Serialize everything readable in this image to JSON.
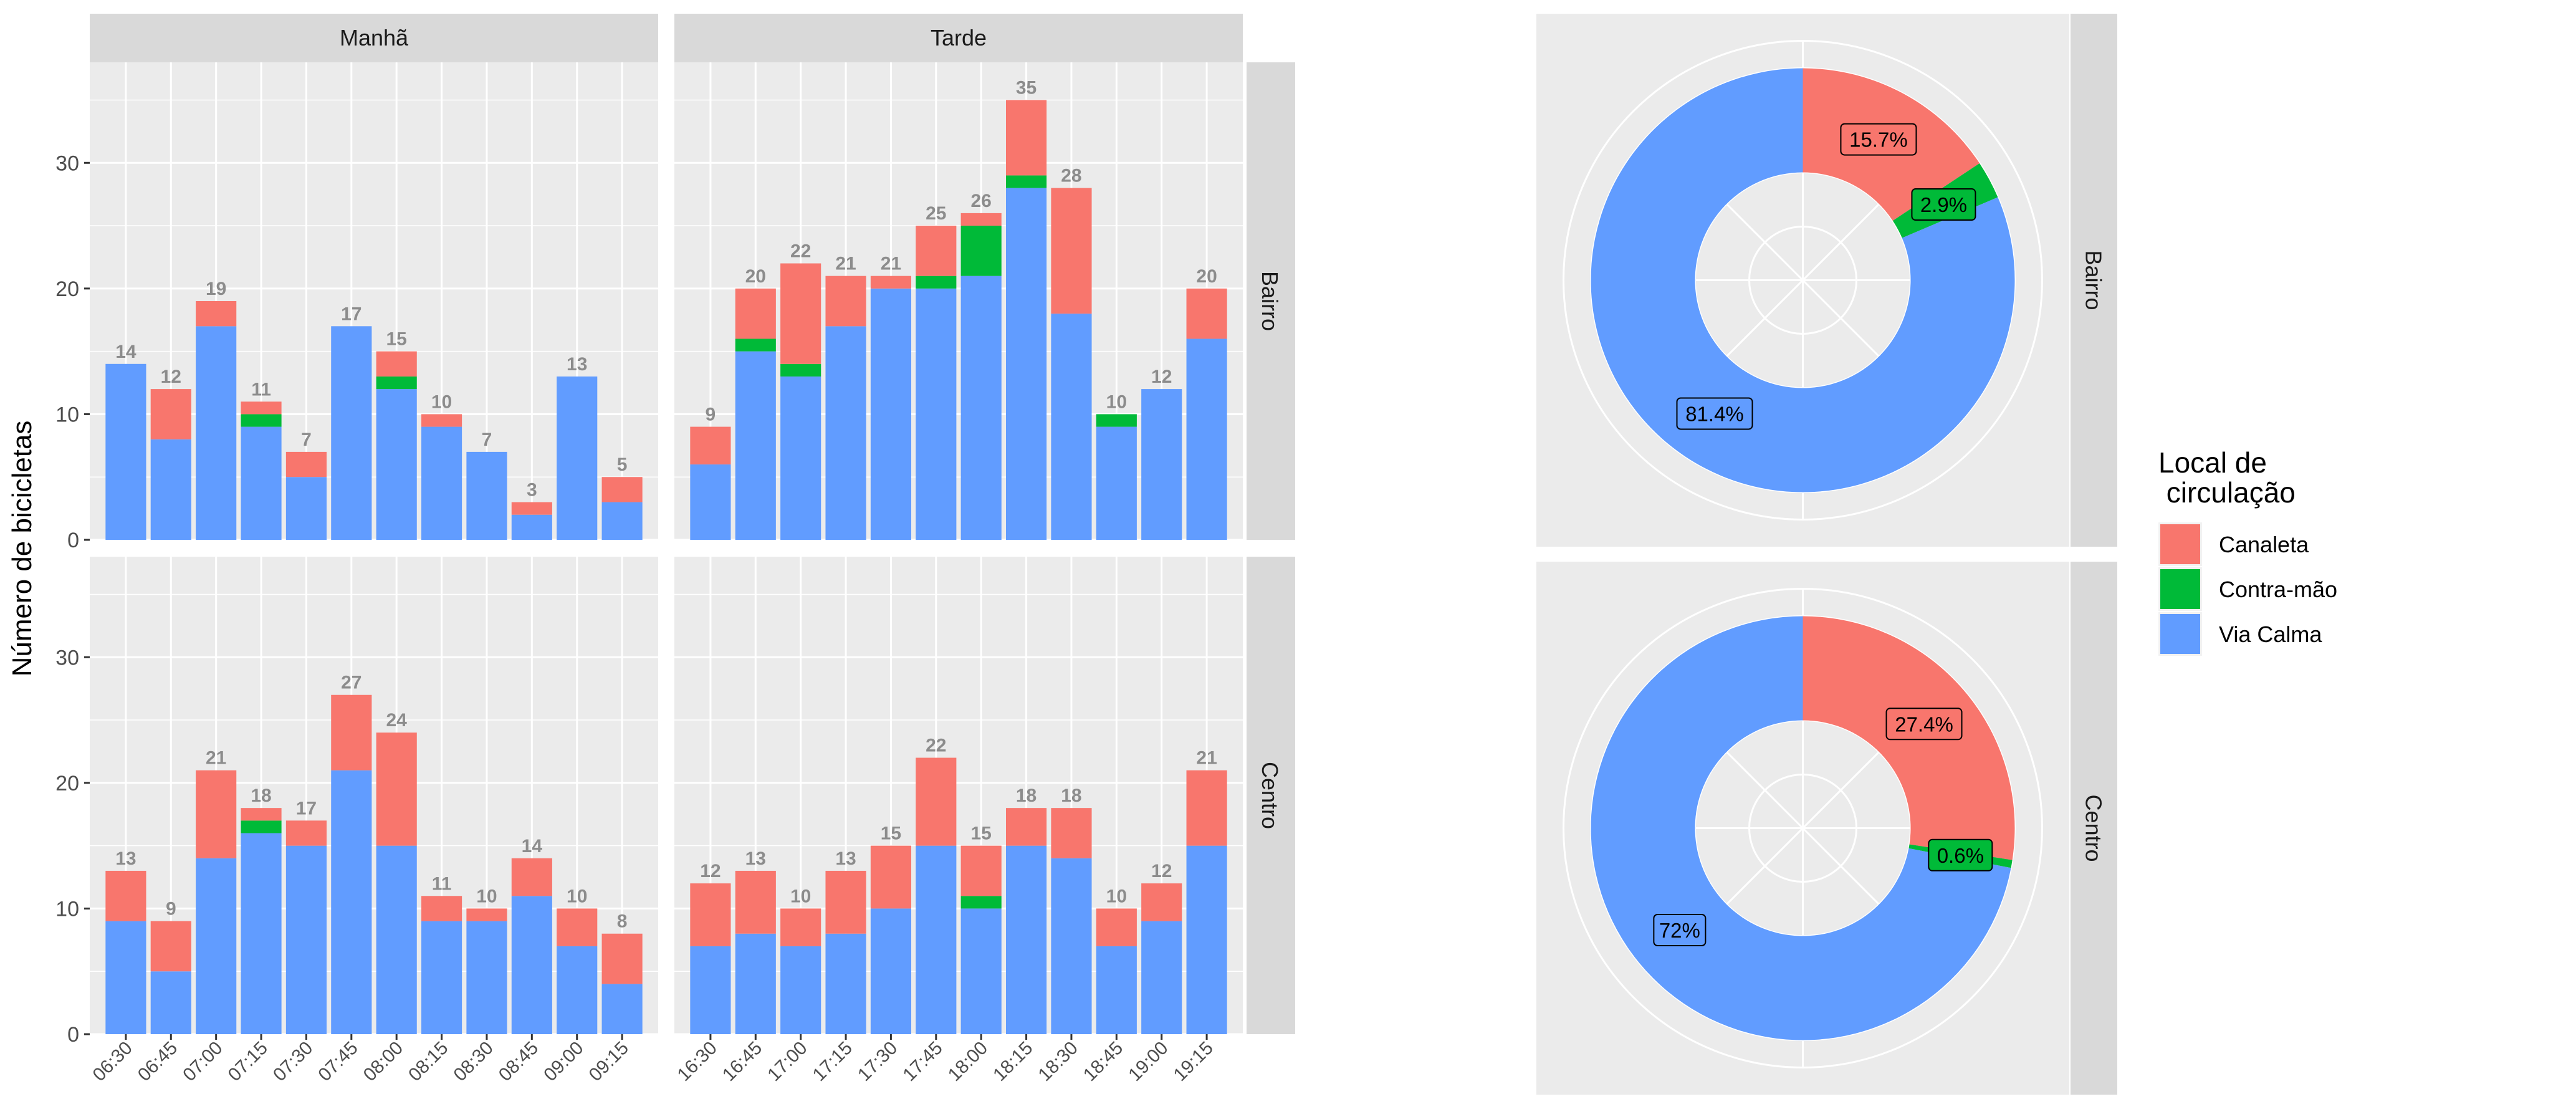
{
  "chart_data": [
    {
      "type": "bar",
      "stacked": true,
      "ylabel": "Número de bicicletas",
      "xlabel": "",
      "ylim": [
        0,
        38
      ],
      "yticks": [
        0,
        10,
        20,
        30
      ],
      "grid": true,
      "col_facets": [
        "Manhã",
        "Tarde"
      ],
      "row_facets": [
        "Bairro",
        "Centro"
      ],
      "categories_by_col": {
        "Manhã": [
          "06:30",
          "06:45",
          "07:00",
          "07:15",
          "07:30",
          "07:45",
          "08:00",
          "08:15",
          "08:30",
          "08:45",
          "09:00",
          "09:15"
        ],
        "Tarde": [
          "16:30",
          "16:45",
          "17:00",
          "17:15",
          "17:30",
          "17:45",
          "18:00",
          "18:15",
          "18:30",
          "18:45",
          "19:00",
          "19:15"
        ]
      },
      "series_order": [
        "Via Calma",
        "Contra-mão",
        "Canaleta"
      ],
      "panels": [
        {
          "row": "Bairro",
          "col": "Manhã",
          "series": [
            {
              "name": "Via Calma",
              "values": [
                14,
                8,
                17,
                9,
                5,
                17,
                12,
                9,
                7,
                2,
                13,
                3
              ]
            },
            {
              "name": "Contra-mão",
              "values": [
                0,
                0,
                0,
                1,
                0,
                0,
                1,
                0,
                0,
                0,
                0,
                0
              ]
            },
            {
              "name": "Canaleta",
              "values": [
                0,
                4,
                2,
                1,
                2,
                0,
                2,
                1,
                0,
                1,
                0,
                2
              ]
            }
          ],
          "totals": [
            14,
            12,
            19,
            11,
            7,
            17,
            15,
            10,
            7,
            3,
            13,
            5
          ]
        },
        {
          "row": "Bairro",
          "col": "Tarde",
          "series": [
            {
              "name": "Via Calma",
              "values": [
                6,
                15,
                13,
                17,
                20,
                20,
                21,
                28,
                18,
                9,
                12,
                16
              ]
            },
            {
              "name": "Contra-mão",
              "values": [
                0,
                1,
                1,
                0,
                0,
                1,
                4,
                1,
                0,
                1,
                0,
                0
              ]
            },
            {
              "name": "Canaleta",
              "values": [
                3,
                4,
                8,
                4,
                1,
                4,
                1,
                6,
                10,
                0,
                0,
                4
              ]
            }
          ],
          "totals": [
            9,
            20,
            22,
            21,
            21,
            25,
            26,
            35,
            28,
            10,
            12,
            20
          ]
        },
        {
          "row": "Centro",
          "col": "Manhã",
          "series": [
            {
              "name": "Via Calma",
              "values": [
                9,
                5,
                14,
                16,
                15,
                21,
                15,
                9,
                9,
                11,
                7,
                4
              ]
            },
            {
              "name": "Contra-mão",
              "values": [
                0,
                0,
                0,
                1,
                0,
                0,
                0,
                0,
                0,
                0,
                0,
                0
              ]
            },
            {
              "name": "Canaleta",
              "values": [
                4,
                4,
                7,
                1,
                2,
                6,
                9,
                2,
                1,
                3,
                3,
                4
              ]
            }
          ],
          "totals": [
            13,
            9,
            21,
            18,
            17,
            27,
            24,
            11,
            10,
            14,
            10,
            8
          ]
        },
        {
          "row": "Centro",
          "col": "Tarde",
          "series": [
            {
              "name": "Via Calma",
              "values": [
                7,
                8,
                7,
                8,
                10,
                15,
                10,
                15,
                14,
                7,
                9,
                15
              ]
            },
            {
              "name": "Contra-mão",
              "values": [
                0,
                0,
                0,
                0,
                0,
                0,
                1,
                0,
                0,
                0,
                0,
                0
              ]
            },
            {
              "name": "Canaleta",
              "values": [
                5,
                5,
                3,
                5,
                5,
                7,
                4,
                3,
                4,
                3,
                3,
                6
              ]
            }
          ],
          "totals": [
            12,
            13,
            10,
            13,
            15,
            22,
            15,
            18,
            18,
            10,
            12,
            21
          ]
        }
      ]
    },
    {
      "type": "pie",
      "donut": true,
      "row_facets": [
        "Bairro",
        "Centro"
      ],
      "panels": [
        {
          "row": "Bairro",
          "slices": [
            {
              "name": "Canaleta",
              "value": 15.7,
              "label": "15.7%"
            },
            {
              "name": "Contra-mão",
              "value": 2.9,
              "label": "2.9%"
            },
            {
              "name": "Via Calma",
              "value": 81.4,
              "label": "81.4%"
            }
          ]
        },
        {
          "row": "Centro",
          "slices": [
            {
              "name": "Canaleta",
              "value": 27.4,
              "label": "27.4%"
            },
            {
              "name": "Contra-mão",
              "value": 0.6,
              "label": "0.6%"
            },
            {
              "name": "Via Calma",
              "value": 72,
              "label": "72%"
            }
          ]
        }
      ]
    }
  ],
  "legend": {
    "title_line1": "Local de",
    "title_line2": " circulação",
    "items": [
      {
        "name": "Canaleta",
        "color": "#F8766D"
      },
      {
        "name": "Contra-mão",
        "color": "#00BA38"
      },
      {
        "name": "Via Calma",
        "color": "#619CFF"
      }
    ]
  },
  "colors": {
    "Canaleta": "#F8766D",
    "Contra-mão": "#00BA38",
    "Via Calma": "#619CFF",
    "panel_bg": "#EBEBEB",
    "strip_bg": "#D9D9D9",
    "grid": "#FFFFFF",
    "total_label": "#8C8C8C"
  }
}
